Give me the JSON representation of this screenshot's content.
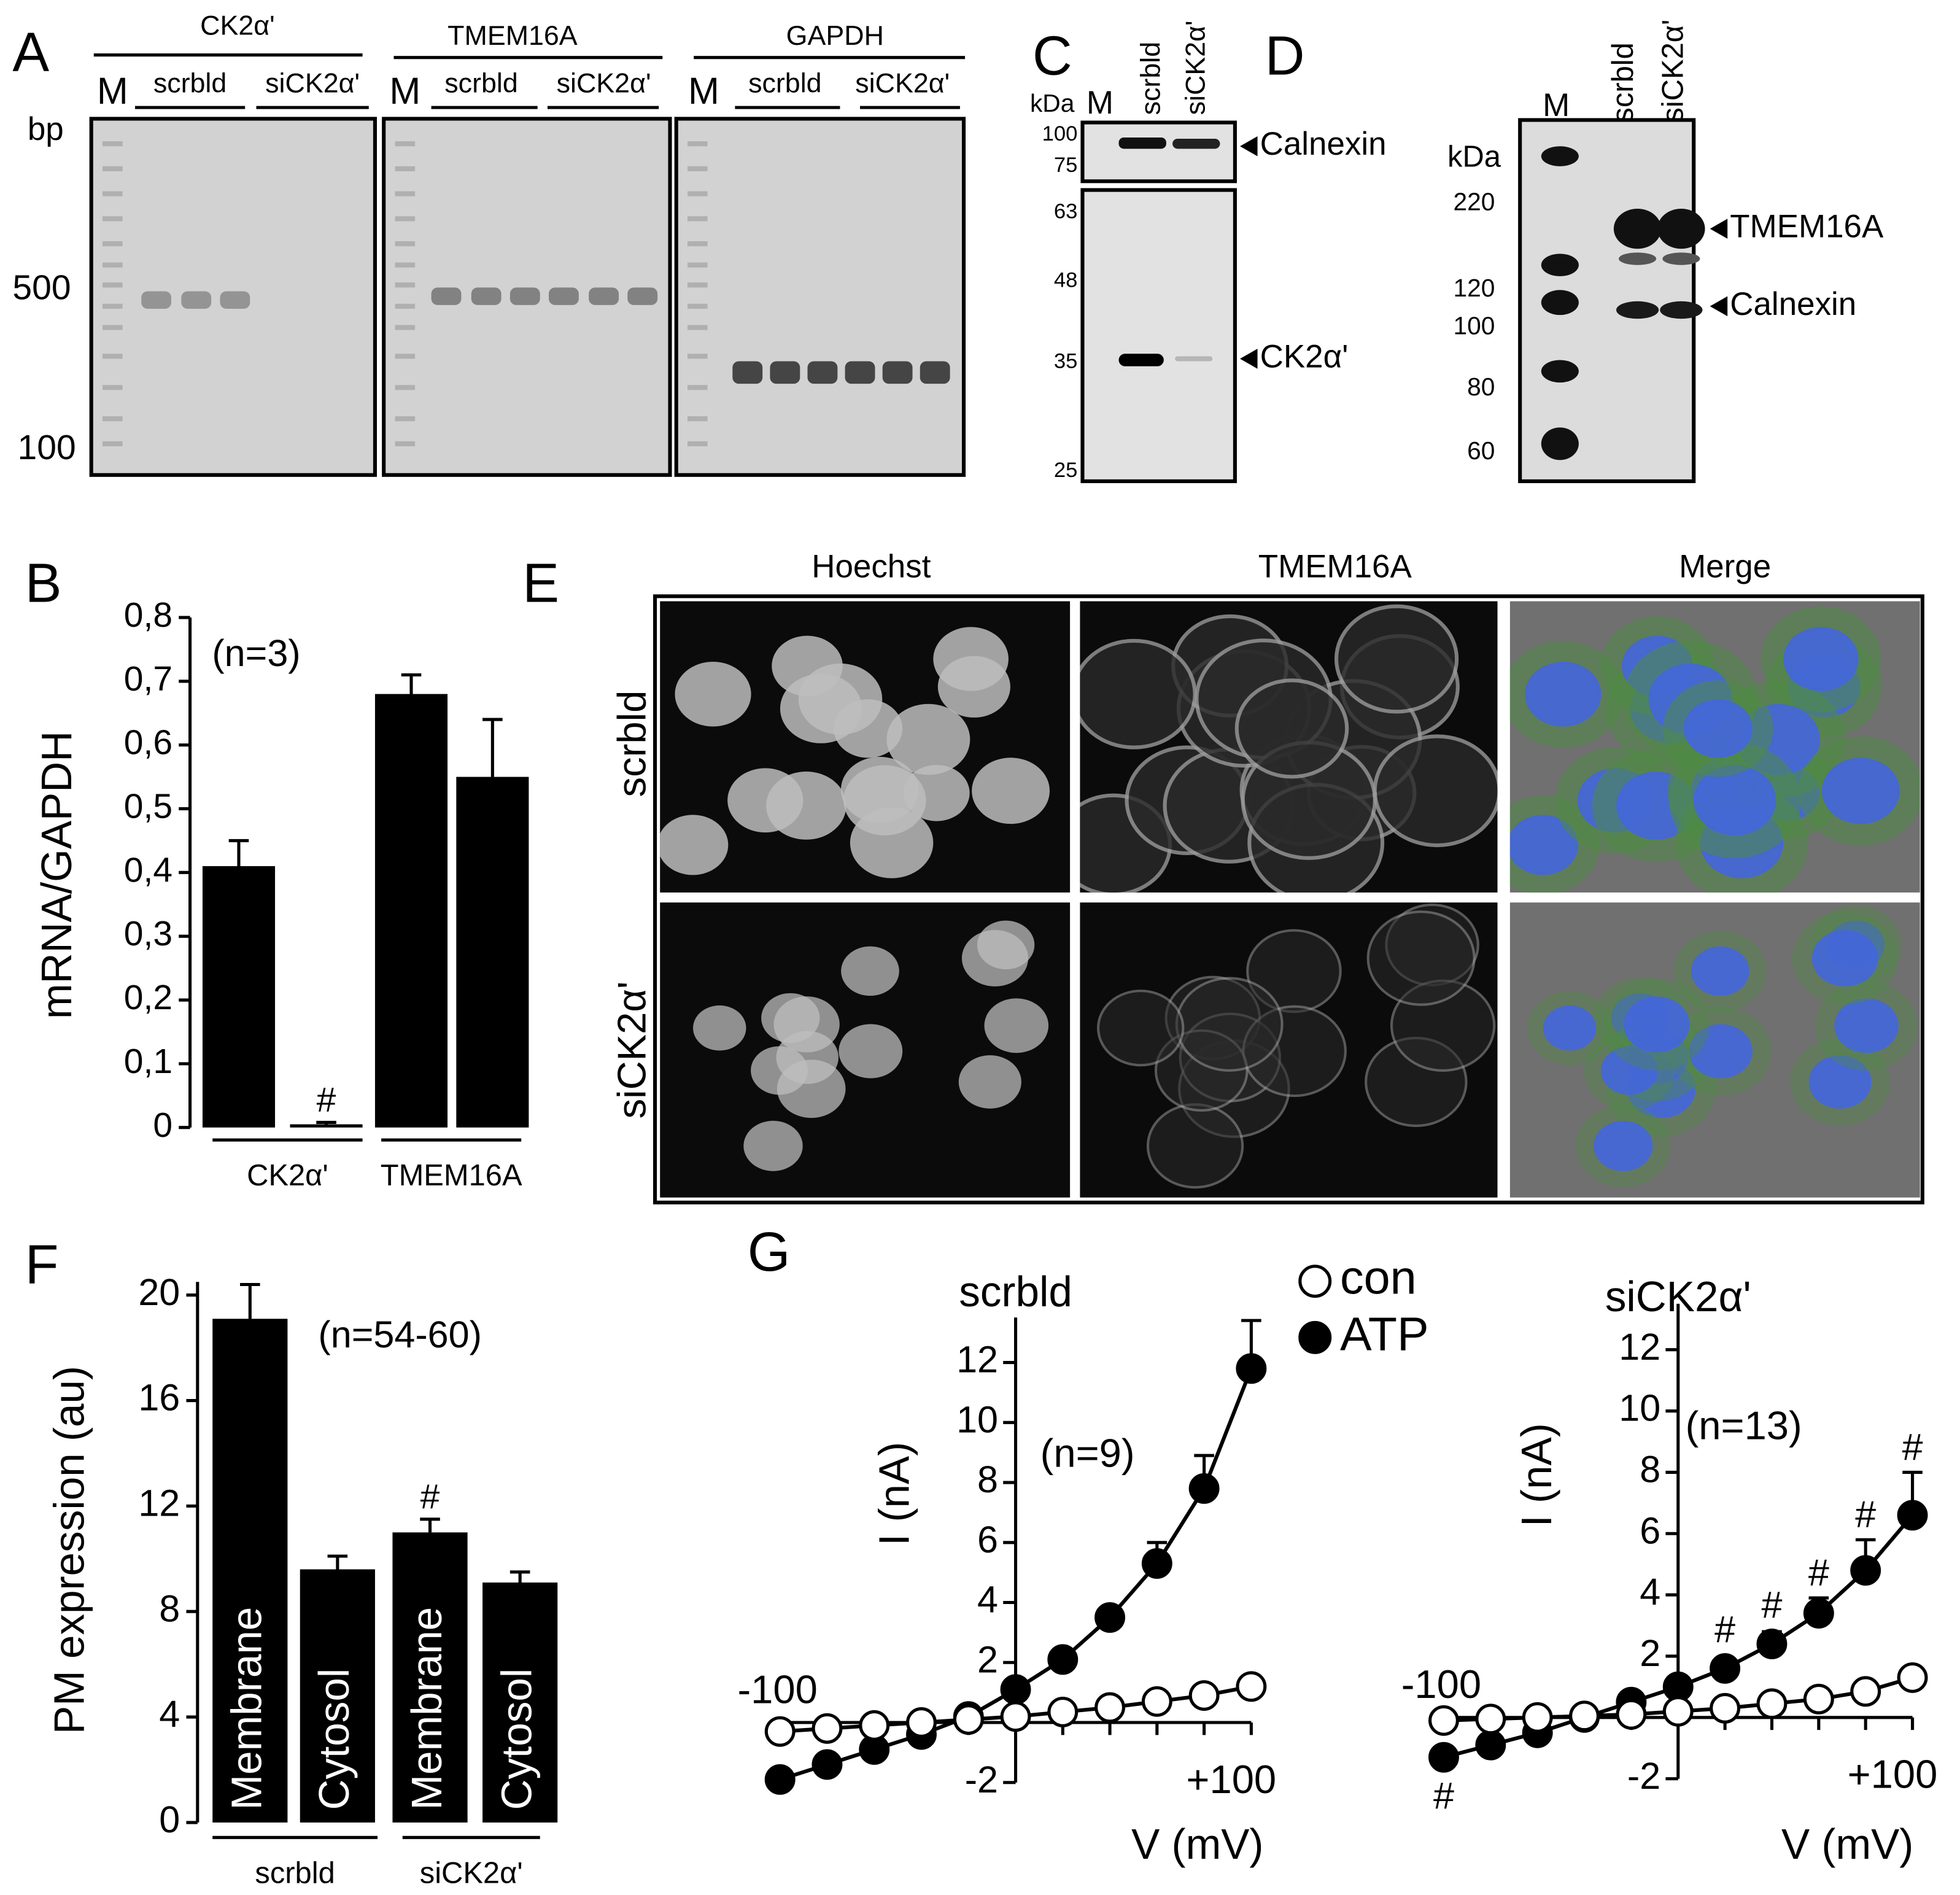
{
  "panel_A": {
    "letter": "A",
    "unit": "bp",
    "size_markers": [
      "500",
      "100"
    ],
    "gels": [
      {
        "target": "CK2α'",
        "marker": "M",
        "groups": [
          "scrbld",
          "siCK2α'"
        ]
      },
      {
        "target": "TMEM16A",
        "marker": "M",
        "groups": [
          "scrbld",
          "siCK2α'"
        ]
      },
      {
        "target": "GAPDH",
        "marker": "M",
        "groups": [
          "scrbld",
          "siCK2α'"
        ]
      }
    ]
  },
  "panel_C": {
    "letter": "C",
    "unit": "kDa",
    "marker": "M",
    "lanes": [
      "scrbld",
      "siCK2α'"
    ],
    "size_markers": [
      "100",
      "75",
      "63",
      "48",
      "35",
      "25"
    ],
    "bands": [
      "Calnexin",
      "CK2α'"
    ]
  },
  "panel_D": {
    "letter": "D",
    "unit": "kDa",
    "marker": "M",
    "lanes": [
      "scrbld",
      "siCK2α'"
    ],
    "size_markers": [
      "220",
      "120",
      "100",
      "80",
      "60"
    ],
    "bands": [
      "TMEM16A",
      "Calnexin"
    ]
  },
  "panel_E": {
    "letter": "E",
    "columns": [
      "Hoechst",
      "TMEM16A",
      "Merge"
    ],
    "rows": [
      "scrbld",
      "siCK2α'"
    ]
  },
  "chart_data": [
    {
      "panel": "B",
      "type": "bar",
      "y_label": "mRNA/GAPDH",
      "annotation": "(n=3)",
      "values": [
        0.41,
        0.005,
        0.68,
        0.55
      ],
      "errors": [
        0.04,
        0.003,
        0.03,
        0.09
      ],
      "significance": [
        null,
        "#",
        null,
        null
      ],
      "group_labels": [
        "CK2α'",
        "TMEM16A"
      ],
      "color": "#000000",
      "ylim": [
        0,
        0.8
      ],
      "yticks": [
        0,
        {
          "value": 0.1,
          "label": "0,1"
        },
        {
          "value": 0.2,
          "label": "0,2"
        },
        {
          "value": 0.3,
          "label": "0,3"
        },
        {
          "value": 0.4,
          "label": "0,4"
        },
        {
          "value": 0.5,
          "label": "0,5"
        },
        {
          "value": 0.6,
          "label": "0,6"
        },
        {
          "value": 0.7,
          "label": "0,7"
        },
        {
          "value": 0.8,
          "label": "0,8"
        }
      ]
    },
    {
      "panel": "F",
      "type": "bar",
      "y_label": "PM expression (au)",
      "annotation": "(n=54-60)",
      "categories": [
        "Membrane",
        "Cytosol",
        "Membrane",
        "Cytosol"
      ],
      "values": [
        19.1,
        9.6,
        11.0,
        9.1
      ],
      "errors": [
        1.3,
        0.5,
        0.5,
        0.4
      ],
      "significance": [
        null,
        null,
        "#",
        null
      ],
      "group_labels": [
        "scrbld",
        "siCK2α'"
      ],
      "color": "#000000",
      "label_color": "#ffffff",
      "ylim": [
        0,
        20.5
      ],
      "yticks": [
        0,
        4,
        8,
        12,
        16,
        20
      ]
    },
    {
      "panel": "G",
      "type": "line",
      "title": "scrbld",
      "annotation": "(n=9)",
      "x_label": "V (mV)",
      "y_label": "I (nA)",
      "x": [
        -100,
        -80,
        -60,
        -40,
        -20,
        0,
        20,
        40,
        60,
        80,
        100
      ],
      "xlim": [
        -100,
        100
      ],
      "xticks": [
        -100,
        {
          "value": 100,
          "label": "+100"
        }
      ],
      "xminorticks": [
        -80,
        -60,
        -40,
        -20,
        20,
        40,
        60,
        80
      ],
      "ylim": [
        -2,
        13.5
      ],
      "yticks": [
        -2,
        2,
        4,
        6,
        8,
        10,
        12
      ],
      "series": [
        {
          "name": "con",
          "color": "#000000",
          "fill": "#ffffff",
          "values": [
            -0.3,
            -0.2,
            -0.1,
            0.0,
            0.1,
            0.2,
            0.35,
            0.5,
            0.7,
            0.9,
            1.2
          ]
        },
        {
          "name": "ATP",
          "color": "#000000",
          "fill": "#000000",
          "values": [
            -1.9,
            -1.4,
            -0.9,
            -0.4,
            0.2,
            1.1,
            2.1,
            3.5,
            5.3,
            7.8,
            11.8
          ],
          "errors": [
            0.2,
            0.2,
            0.2,
            0.2,
            0.2,
            0.2,
            0.2,
            0.3,
            0.7,
            1.1,
            1.6
          ]
        }
      ]
    },
    {
      "type": "line",
      "title": "siCK2α'",
      "annotation": "(n=13)",
      "x_label": "V (mV)",
      "y_label": "I (nA)",
      "x": [
        -100,
        -80,
        -60,
        -40,
        -20,
        0,
        20,
        40,
        60,
        80,
        100
      ],
      "xlim": [
        -100,
        100
      ],
      "xticks": [
        -100,
        {
          "value": 100,
          "label": "+100"
        }
      ],
      "xminorticks": [
        -80,
        -60,
        -40,
        -20,
        20,
        40,
        60,
        80
      ],
      "ylim": [
        -2,
        13.5
      ],
      "yticks": [
        -2,
        2,
        4,
        6,
        8,
        10,
        12
      ],
      "series": [
        {
          "color": "#000000",
          "fill": "#ffffff",
          "values": [
            -0.1,
            -0.05,
            0.0,
            0.05,
            0.1,
            0.2,
            0.3,
            0.45,
            0.6,
            0.85,
            1.3
          ]
        },
        {
          "color": "#000000",
          "fill": "#000000",
          "values": [
            -1.3,
            -0.9,
            -0.5,
            0.0,
            0.5,
            1.0,
            1.6,
            2.4,
            3.4,
            4.8,
            6.6
          ],
          "errors": [
            0.2,
            0.2,
            0.2,
            0.2,
            0.2,
            0.2,
            0.2,
            0.4,
            0.5,
            1.0,
            1.4
          ],
          "significance": [
            "#",
            null,
            null,
            null,
            null,
            null,
            "#",
            "#",
            "#",
            "#",
            "#"
          ]
        }
      ]
    }
  ]
}
